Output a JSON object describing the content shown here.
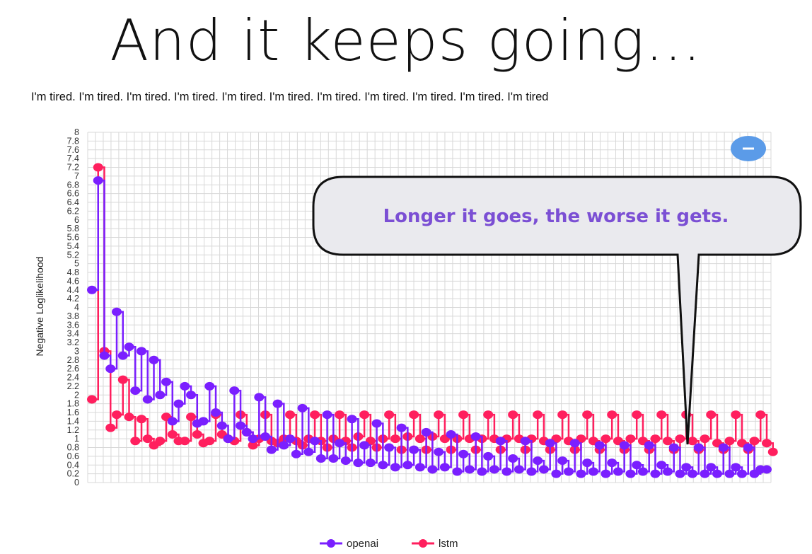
{
  "slide": {
    "title": "And it keeps going…",
    "subtitle": "I'm tired. I'm tired. I'm tired. I'm tired. I'm tired. I'm tired. I'm tired. I'm tired. I'm tired. I'm tired. I'm tired"
  },
  "callout": {
    "text": "Longer it goes, the worse it gets."
  },
  "colors": {
    "openai": "#7a1fff",
    "lstm": "#ff1f5e",
    "grid": "#d8d8d8",
    "minus_button": "#5b9be8"
  },
  "icons": {
    "minus_button": "minus-icon"
  },
  "chart_data": {
    "type": "line",
    "title": "",
    "xlabel": "",
    "ylabel": "Negative Loglikelihood",
    "ylim": [
      0,
      8
    ],
    "y_ticks": [
      "0",
      "0.2",
      "0.4",
      "0.6",
      "0.8",
      "1",
      "1.2",
      "1.4",
      "1.6",
      "1.8",
      "2",
      "2.2",
      "2.4",
      "2.6",
      "2.8",
      "3",
      "3.2",
      "3.4",
      "3.6",
      "3.8",
      "4",
      "4.2",
      "4.4",
      "4.6",
      "4.8",
      "5",
      "5.2",
      "5.4",
      "5.6",
      "5.8",
      "6",
      "6.2",
      "6.4",
      "6.6",
      "6.8",
      "7",
      "7.2",
      "7.4",
      "7.6",
      "7.8",
      "8"
    ],
    "grid": true,
    "legend": "bottom",
    "series": [
      {
        "name": "openai",
        "values": [
          4.4,
          6.9,
          2.9,
          2.6,
          3.9,
          2.9,
          3.1,
          2.1,
          3.0,
          1.9,
          2.8,
          2.0,
          2.3,
          1.4,
          1.8,
          2.2,
          2.0,
          1.35,
          1.4,
          2.2,
          1.6,
          1.3,
          1.0,
          2.1,
          1.3,
          1.15,
          1.0,
          1.95,
          1.05,
          0.75,
          1.8,
          0.85,
          1.0,
          0.65,
          1.7,
          0.7,
          0.95,
          0.55,
          1.55,
          0.55,
          0.9,
          0.5,
          1.45,
          0.45,
          0.85,
          0.45,
          1.35,
          0.4,
          0.8,
          0.35,
          1.25,
          0.4,
          0.75,
          0.35,
          1.15,
          0.3,
          0.7,
          0.35,
          1.1,
          0.25,
          0.65,
          0.3,
          1.05,
          0.25,
          0.6,
          0.3,
          0.95,
          0.25,
          0.55,
          0.3,
          0.95,
          0.25,
          0.5,
          0.3,
          0.9,
          0.2,
          0.5,
          0.25,
          0.9,
          0.2,
          0.45,
          0.25,
          0.85,
          0.2,
          0.45,
          0.25,
          0.85,
          0.2,
          0.4,
          0.25,
          0.85,
          0.2,
          0.4,
          0.25,
          0.8,
          0.2,
          0.35,
          0.2,
          0.8,
          0.2,
          0.35,
          0.2,
          0.8,
          0.2,
          0.35,
          0.2,
          0.8,
          0.2,
          0.3,
          0.3
        ]
      },
      {
        "name": "lstm",
        "values": [
          1.9,
          7.2,
          3.0,
          1.25,
          1.55,
          2.35,
          1.5,
          0.95,
          1.45,
          1.0,
          0.85,
          0.95,
          1.5,
          1.1,
          0.95,
          0.95,
          1.5,
          1.1,
          0.9,
          0.95,
          1.55,
          1.1,
          1.0,
          0.95,
          1.55,
          1.15,
          0.85,
          1.0,
          1.55,
          0.95,
          0.9,
          1.0,
          1.55,
          0.95,
          0.85,
          1.0,
          1.55,
          0.95,
          0.8,
          1.0,
          1.55,
          0.95,
          0.8,
          1.05,
          1.55,
          0.95,
          0.8,
          1.0,
          1.55,
          1.0,
          0.75,
          1.05,
          1.55,
          1.0,
          0.75,
          1.05,
          1.55,
          1.0,
          0.75,
          1.0,
          1.55,
          1.0,
          0.75,
          1.0,
          1.55,
          1.0,
          0.75,
          1.0,
          1.55,
          1.0,
          0.75,
          1.0,
          1.55,
          0.95,
          0.75,
          1.0,
          1.55,
          0.95,
          0.75,
          1.0,
          1.55,
          0.95,
          0.75,
          1.0,
          1.55,
          0.95,
          0.75,
          1.0,
          1.55,
          0.95,
          0.75,
          1.0,
          1.55,
          0.95,
          0.75,
          1.0,
          1.55,
          0.95,
          0.75,
          1.0,
          1.55,
          0.9,
          0.75,
          0.95,
          1.55,
          0.9,
          0.75,
          0.95,
          1.55,
          0.9,
          0.7
        ]
      }
    ]
  }
}
